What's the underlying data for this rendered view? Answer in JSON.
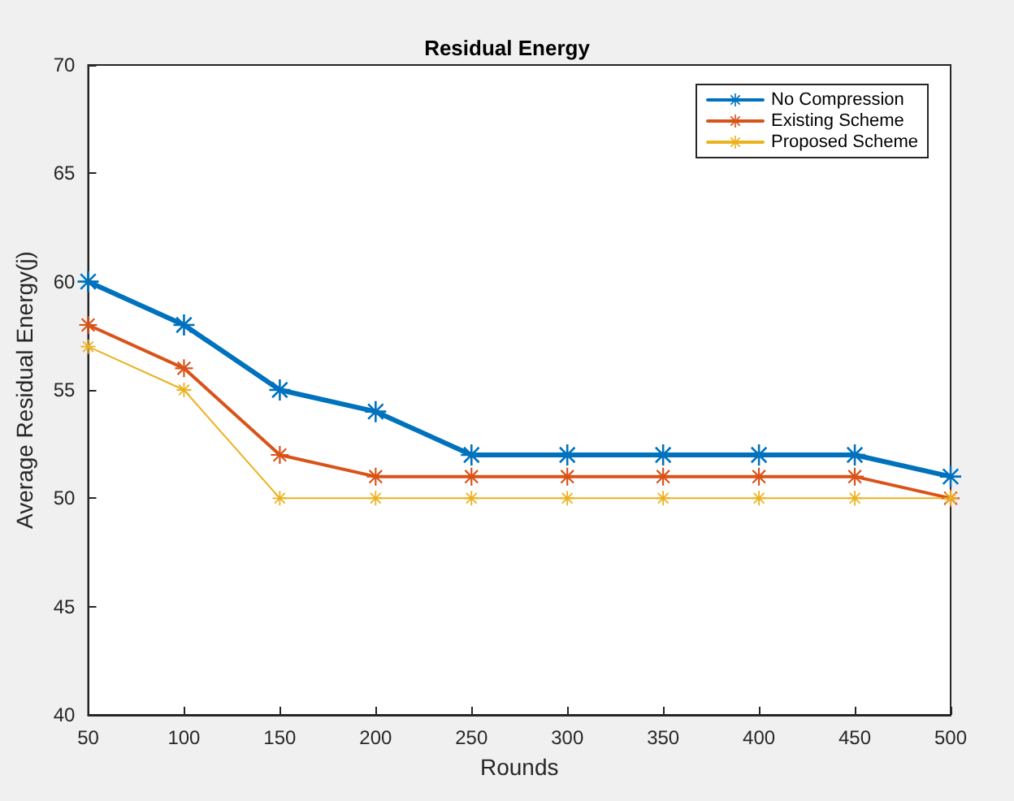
{
  "chart_data": {
    "type": "line",
    "title": "Residual Energy",
    "xlabel": "Rounds",
    "ylabel": "Average Residual Energy(j)",
    "categories": [
      "50",
      "100",
      "150",
      "200",
      "250",
      "300",
      "350",
      "400",
      "450",
      "500"
    ],
    "series": [
      {
        "name": "No Compression",
        "color": "#0072bd",
        "values": [
          60,
          58,
          55,
          54,
          52,
          52,
          52,
          52,
          52,
          51
        ]
      },
      {
        "name": "Existing Scheme",
        "color": "#d95319",
        "values": [
          58,
          56,
          52,
          51,
          51,
          51,
          51,
          51,
          51,
          50
        ]
      },
      {
        "name": "Proposed Scheme",
        "color": "#edb120",
        "values": [
          57,
          55,
          50,
          50,
          50,
          50,
          50,
          50,
          50,
          50
        ]
      }
    ],
    "ylim": [
      40,
      70
    ],
    "yticks": [
      40,
      45,
      50,
      55,
      60,
      65,
      70
    ],
    "grid": false,
    "legend": "top right",
    "marker": "star",
    "line_style": "solid"
  }
}
